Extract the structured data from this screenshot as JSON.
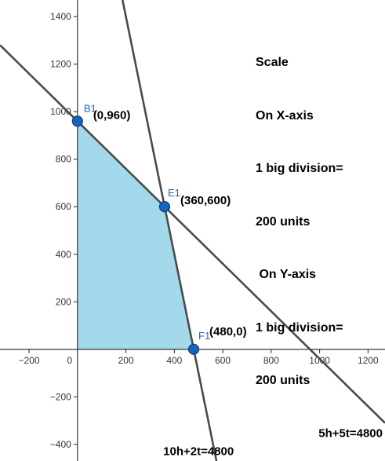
{
  "chart_data": {
    "type": "line",
    "xlim": [
      -320,
      1270
    ],
    "ylim": [
      -470,
      1470
    ],
    "grid": false,
    "x_ticks": [
      -200,
      0,
      200,
      400,
      600,
      800,
      1000,
      1200
    ],
    "y_ticks": [
      -400,
      -200,
      200,
      400,
      600,
      800,
      1000,
      1200,
      1400
    ],
    "x_tick_labels": [
      "−200",
      "0",
      "200",
      "400",
      "600",
      "800",
      "1000",
      "1200"
    ],
    "y_tick_labels": [
      "−400",
      "−200",
      "200",
      "400",
      "600",
      "800",
      "1000",
      "1200",
      "1400"
    ],
    "lines": [
      {
        "name": "5h+5t=4800",
        "a": 5,
        "b": 5,
        "c": 4800
      },
      {
        "name": "10h+2t=4800",
        "a": 10,
        "b": 2,
        "c": 4800
      }
    ],
    "feasible_region": [
      [
        0,
        0
      ],
      [
        0,
        960
      ],
      [
        360,
        600
      ],
      [
        480,
        0
      ]
    ],
    "points": [
      {
        "name": "B1",
        "label": "(0,960)",
        "x": 0,
        "y": 960
      },
      {
        "name": "E1",
        "label": "(360,600)",
        "x": 360,
        "y": 600
      },
      {
        "name": "F1",
        "label": "(480,0)",
        "x": 480,
        "y": 0
      }
    ],
    "scale_note": [
      "Scale",
      "On X-axis",
      "1 big division=",
      "200 units",
      " On Y-axis",
      "1 big division=",
      "200 units"
    ]
  },
  "colors": {
    "region_fill": "#a3d9ea",
    "line": "#4a4a4a",
    "point_fill": "#1565c0",
    "point_label": "#1565c0"
  }
}
